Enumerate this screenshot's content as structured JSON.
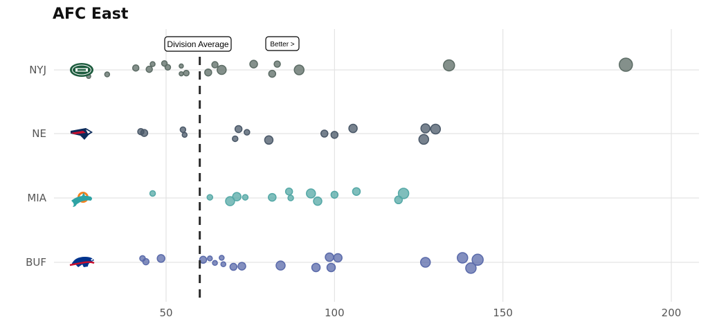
{
  "chart_data": {
    "type": "scatter",
    "title": "AFC East",
    "xlabel": "",
    "ylabel": "",
    "xlim": [
      17,
      210
    ],
    "x_ticks": [
      50,
      100,
      150,
      200
    ],
    "grid": true,
    "legend": "none",
    "categories": [
      "NYJ",
      "NE",
      "MIA",
      "BUF"
    ],
    "annotations": {
      "division_average": {
        "label": "Division Average",
        "x": 60
      },
      "better": {
        "label": "Better >"
      }
    },
    "logo_icons": [
      "jets-logo-icon",
      "patriots-logo-icon",
      "dolphins-logo-icon",
      "bills-logo-icon"
    ],
    "series": [
      {
        "team": "NYJ",
        "color": "#5b6b64",
        "points": [
          {
            "x": 27,
            "y": -0.1,
            "s": 3
          },
          {
            "x": 32.5,
            "y": -0.07,
            "s": 3.5
          },
          {
            "x": 41,
            "y": 0.03,
            "s": 4.5
          },
          {
            "x": 45,
            "y": 0.01,
            "s": 4.5
          },
          {
            "x": 46,
            "y": 0.09,
            "s": 3.5
          },
          {
            "x": 49.5,
            "y": 0.1,
            "s": 4
          },
          {
            "x": 50.5,
            "y": 0.04,
            "s": 4
          },
          {
            "x": 54.5,
            "y": 0.06,
            "s": 3
          },
          {
            "x": 54.5,
            "y": -0.06,
            "s": 3
          },
          {
            "x": 56,
            "y": -0.05,
            "s": 4
          },
          {
            "x": 62.5,
            "y": -0.04,
            "s": 5
          },
          {
            "x": 64.5,
            "y": 0.08,
            "s": 4.5
          },
          {
            "x": 66.5,
            "y": 0.0,
            "s": 6.5
          },
          {
            "x": 76,
            "y": 0.09,
            "s": 5.5
          },
          {
            "x": 81.5,
            "y": -0.06,
            "s": 5
          },
          {
            "x": 83,
            "y": 0.09,
            "s": 4.5
          },
          {
            "x": 89.5,
            "y": 0.0,
            "s": 7
          },
          {
            "x": 134,
            "y": 0.07,
            "s": 8
          },
          {
            "x": 186.5,
            "y": 0.08,
            "s": 9.5
          }
        ]
      },
      {
        "team": "NE",
        "color": "#4a5868",
        "points": [
          {
            "x": 42.5,
            "y": 0.03,
            "s": 4.5
          },
          {
            "x": 43.5,
            "y": 0.01,
            "s": 5
          },
          {
            "x": 55,
            "y": 0.06,
            "s": 4
          },
          {
            "x": 55.5,
            "y": -0.02,
            "s": 3.5
          },
          {
            "x": 70.5,
            "y": -0.08,
            "s": 4
          },
          {
            "x": 71.5,
            "y": 0.07,
            "s": 5
          },
          {
            "x": 74,
            "y": 0.02,
            "s": 4
          },
          {
            "x": 80.5,
            "y": -0.1,
            "s": 6
          },
          {
            "x": 97,
            "y": 0.0,
            "s": 5
          },
          {
            "x": 100,
            "y": -0.02,
            "s": 5
          },
          {
            "x": 105.5,
            "y": 0.08,
            "s": 6
          },
          {
            "x": 126.5,
            "y": -0.09,
            "s": 7
          },
          {
            "x": 127,
            "y": 0.08,
            "s": 6.5
          },
          {
            "x": 130,
            "y": 0.07,
            "s": 7
          }
        ]
      },
      {
        "team": "MIA",
        "color": "#54a8a6",
        "points": [
          {
            "x": 46,
            "y": 0.07,
            "s": 4
          },
          {
            "x": 63,
            "y": 0.01,
            "s": 4
          },
          {
            "x": 69,
            "y": -0.05,
            "s": 6.5
          },
          {
            "x": 71,
            "y": 0.02,
            "s": 6
          },
          {
            "x": 73.5,
            "y": 0.01,
            "s": 4
          },
          {
            "x": 81.5,
            "y": 0.01,
            "s": 5.5
          },
          {
            "x": 86.5,
            "y": 0.1,
            "s": 5
          },
          {
            "x": 87,
            "y": 0.0,
            "s": 4
          },
          {
            "x": 93,
            "y": 0.07,
            "s": 6.5
          },
          {
            "x": 95,
            "y": -0.05,
            "s": 6
          },
          {
            "x": 100,
            "y": 0.05,
            "s": 5
          },
          {
            "x": 106.5,
            "y": 0.1,
            "s": 5.5
          },
          {
            "x": 119,
            "y": -0.03,
            "s": 5.5
          },
          {
            "x": 120.5,
            "y": 0.07,
            "s": 7.5
          }
        ]
      },
      {
        "team": "BUF",
        "color": "#5a6aaa",
        "points": [
          {
            "x": 43,
            "y": 0.06,
            "s": 4
          },
          {
            "x": 44,
            "y": 0.01,
            "s": 4.5
          },
          {
            "x": 48.5,
            "y": 0.06,
            "s": 5.5
          },
          {
            "x": 61,
            "y": 0.04,
            "s": 5
          },
          {
            "x": 63,
            "y": 0.06,
            "s": 3.5
          },
          {
            "x": 64.5,
            "y": -0.01,
            "s": 3.5
          },
          {
            "x": 66.5,
            "y": 0.07,
            "s": 3.5
          },
          {
            "x": 67,
            "y": -0.03,
            "s": 3.5
          },
          {
            "x": 70,
            "y": -0.07,
            "s": 5
          },
          {
            "x": 72.5,
            "y": -0.06,
            "s": 5.5
          },
          {
            "x": 84,
            "y": -0.05,
            "s": 6.5
          },
          {
            "x": 94.5,
            "y": -0.08,
            "s": 6
          },
          {
            "x": 98.5,
            "y": 0.08,
            "s": 6
          },
          {
            "x": 99,
            "y": -0.08,
            "s": 6
          },
          {
            "x": 101,
            "y": 0.07,
            "s": 6
          },
          {
            "x": 127,
            "y": 0.0,
            "s": 7
          },
          {
            "x": 138,
            "y": 0.07,
            "s": 7.5
          },
          {
            "x": 140.5,
            "y": -0.09,
            "s": 7.5
          },
          {
            "x": 142.5,
            "y": 0.04,
            "s": 8
          }
        ]
      }
    ]
  }
}
